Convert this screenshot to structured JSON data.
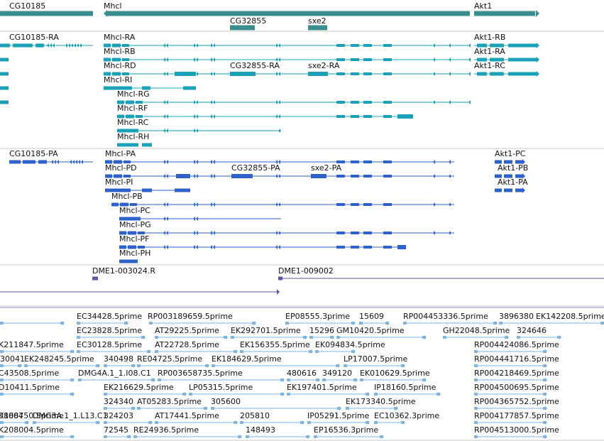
{
  "colors": {
    "gene": "#3a8e8e",
    "transcript": "#1aa1b8",
    "protein": "#2f62c8",
    "insertion": "#6a4ea8",
    "est": "#7fb5dc",
    "divider": "#c8c8c8"
  },
  "icons": {
    "strand_arrow": "chevron-arrow-icon"
  },
  "tracks": {
    "genes": {
      "labels": [
        "CG10185",
        "Mhcl",
        "Akt1",
        "CG32855",
        "sxe2"
      ]
    },
    "transcripts": {
      "labels": [
        "CG10185-RA",
        "Mhcl-RA",
        "Akt1-RB",
        "Mhcl-RB",
        "Akt1-RA",
        "Mhcl-RD",
        "CG32855-RA",
        "sxe2-RA",
        "Akt1-RC",
        "Mhcl-RI",
        "Mhcl-RG",
        "Mhcl-RF",
        "Mhcl-RC",
        "Mhcl-RH"
      ]
    },
    "proteins": {
      "labels": [
        "CG10185-PA",
        "Mhcl-PA",
        "Akt1-PC",
        "Mhcl-PD",
        "CG32855-PA",
        "sxe2-PA",
        "Akt1-PB",
        "Mhcl-PI",
        "Akt1-PA",
        "Mhcl-PB",
        "Mhcl-PC",
        "Mhcl-PG",
        "Mhcl-PF",
        "Mhcl-PH"
      ]
    },
    "insertions": {
      "labels": [
        "DME1-003024.R",
        "DME1-009002"
      ]
    },
    "ests": {
      "labels": [
        "EC34428.5prime",
        "RP003189659.5prime",
        "EP08555.3prime",
        "15609",
        "RP004453336.5prime",
        "3896380",
        "EK142208.5prime",
        "EC23828.5prime",
        "AT29225.5prime",
        "EK292701.5prime",
        "15296",
        "GM10420.5prime",
        "GH22048.5prime",
        "324646",
        "K211847.5prime",
        "EC30128.5prime",
        "AT22728.5prime",
        "EK156355.5prime",
        "EK094834.5prime",
        "RP004424086.5prime",
        "30041",
        "EK248245.5prime",
        "340498",
        "RE04725.5prime",
        "EK184629.5prime",
        "LP17007.5prime",
        "RP004441716.5prime",
        "C43508.5prime",
        "DMG4A.1_1.I08.C1",
        "RP003658735.5prime",
        "480616",
        "349120",
        "EK010629.5prime",
        "RP004218469.5prime",
        "D10411.5prime",
        "EK216629.5prime",
        "LP05315.5prime",
        "EK197401.5prime",
        "IP18160.5prime",
        "RP004500695.5prime",
        "324340",
        "AT05283.5prime",
        "305600",
        "EK173340.5prime",
        "RP004365752.5prime",
        "08004",
        "DMG3A.1_1.L13.C1",
        "324203",
        "AT17441.5prime",
        "205810",
        "IP05291.5prime",
        "EC10362.3prime",
        "RP004177857.5prime",
        "K188750.5prime",
        "K208004.5prime",
        "72545",
        "RE24936.5prime",
        "148493",
        "EP16536.3prime",
        "RP004513000.5prime"
      ]
    }
  }
}
